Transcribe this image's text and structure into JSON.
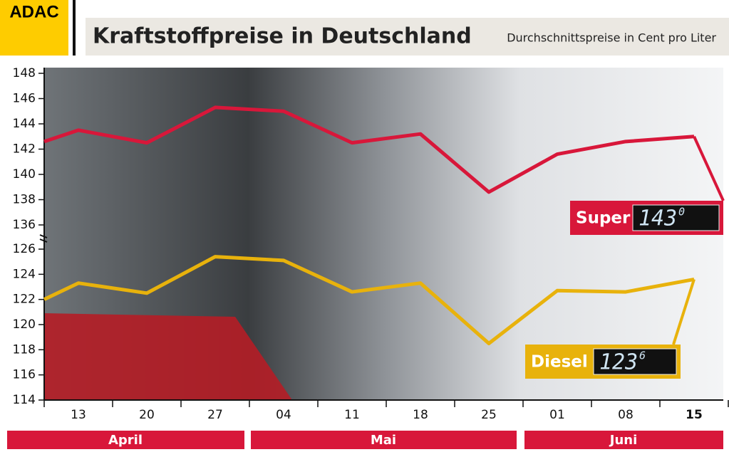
{
  "chart_data": {
    "type": "line",
    "logo": "ADAC",
    "title": "Kraftstoffpreise in Deutschland",
    "subtitle": "Durchschnittspreise in Cent pro Liter",
    "categories": [
      null,
      "13",
      "20",
      "27",
      "04",
      "11",
      "18",
      "25",
      "01",
      "08",
      "15"
    ],
    "months": [
      "April",
      "Mai",
      "Juni"
    ],
    "ylim": [
      114,
      148
    ],
    "axis_break": [
      126,
      136
    ],
    "yticks": [
      114,
      116,
      118,
      120,
      122,
      124,
      126,
      136,
      138,
      140,
      142,
      144,
      146,
      148
    ],
    "series": [
      {
        "name": "Super",
        "color": "#d8173a",
        "values": [
          142.6,
          143.5,
          142.5,
          145.3,
          145.0,
          142.5,
          143.2,
          138.6,
          141.6,
          142.6,
          143.0
        ],
        "display": "143",
        "display_tenth": "0"
      },
      {
        "name": "Diesel",
        "color": "#e8b20c",
        "values": [
          122.0,
          123.3,
          122.5,
          125.4,
          125.1,
          122.6,
          123.3,
          118.5,
          122.7,
          122.6,
          123.6
        ],
        "display": "123",
        "display_tenth": "6"
      }
    ]
  }
}
